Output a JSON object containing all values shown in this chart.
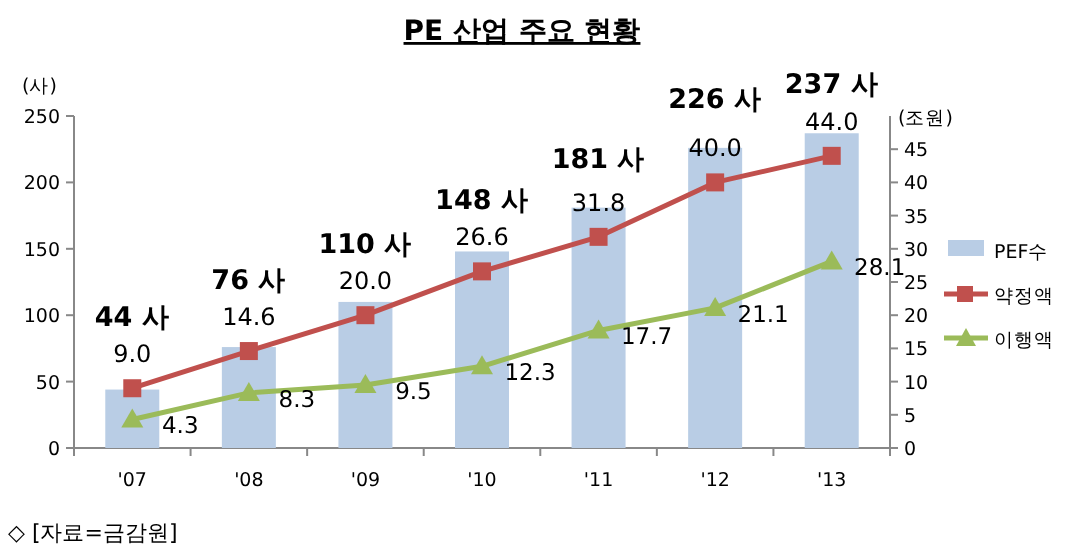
{
  "chart_data": {
    "type": "bar",
    "title": "PE 산업 주요 현황",
    "categories": [
      "'07",
      "'08",
      "'09",
      "'10",
      "'11",
      "'12",
      "'13"
    ],
    "series": [
      {
        "name": "PEF수",
        "color": "#b9cde5",
        "values": [
          44,
          76,
          110,
          148,
          181,
          226,
          237
        ],
        "value_labels": [
          "44 사",
          "76 사",
          "110 사",
          "148 사",
          "181 사",
          "226 사",
          "237 사"
        ]
      },
      {
        "name": "약정액",
        "type": "line",
        "axis": "y2",
        "marker": "square",
        "color": "#c0504d",
        "values": [
          9.0,
          14.6,
          20.0,
          26.6,
          31.8,
          40.0,
          44.0
        ],
        "value_labels": [
          "9.0",
          "14.6",
          "20.0",
          "26.6",
          "31.8",
          "40.0",
          "44.0"
        ]
      },
      {
        "name": "이행액",
        "type": "line",
        "axis": "y2",
        "marker": "triangle",
        "color": "#9bbb59",
        "values": [
          4.3,
          8.3,
          9.5,
          12.3,
          17.7,
          21.1,
          28.1
        ],
        "value_labels": [
          "4.3",
          "8.3",
          "9.5",
          "12.3",
          "17.7",
          "21.1",
          "28.1"
        ]
      }
    ],
    "ylabel": "(사)",
    "y2label": "(조원)",
    "ylim": [
      0,
      250
    ],
    "yticks": [
      0,
      50,
      100,
      150,
      200,
      250
    ],
    "y2lim": [
      0,
      50
    ],
    "y2ticks": [
      0,
      5,
      10,
      15,
      20,
      25,
      30,
      35,
      40,
      45
    ],
    "legend": "right",
    "annotations": [
      "◇ [자료=금감원]"
    ]
  }
}
